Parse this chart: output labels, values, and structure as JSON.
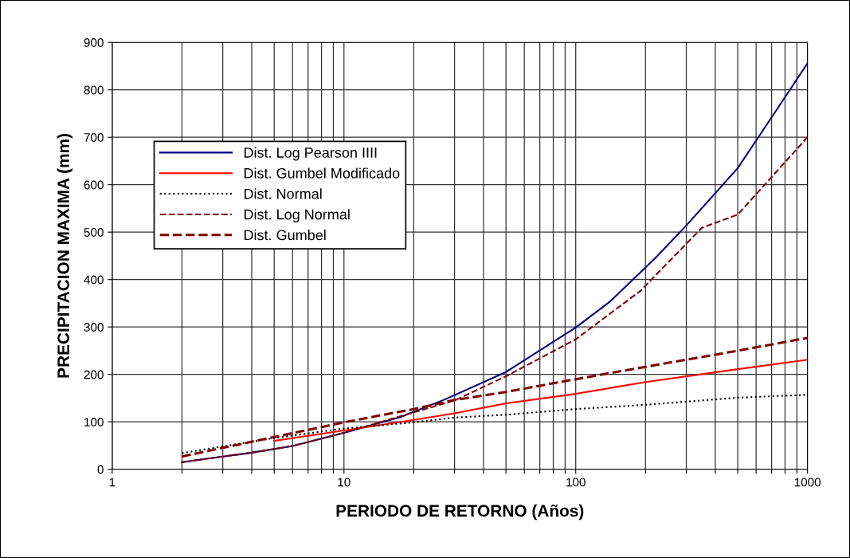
{
  "chart_data": {
    "type": "line",
    "xlabel": "PERIODO DE RETORNO (Años)",
    "ylabel": "PRECIPITACION MAXIMA (mm)",
    "log": "x",
    "grid": true,
    "legend": "top left",
    "xlim": [
      1,
      1000
    ],
    "xticks": [
      1,
      {
        "value": 2,
        "label": null
      },
      {
        "value": 3,
        "label": null
      },
      {
        "value": 4,
        "label": null
      },
      {
        "value": 5,
        "label": null
      },
      {
        "value": 6,
        "label": null
      },
      {
        "value": 7,
        "label": null
      },
      {
        "value": 8,
        "label": null
      },
      {
        "value": 9,
        "label": null
      },
      10,
      {
        "value": 20,
        "label": null
      },
      {
        "value": 30,
        "label": null
      },
      {
        "value": 40,
        "label": null
      },
      {
        "value": 50,
        "label": null
      },
      {
        "value": 60,
        "label": null
      },
      {
        "value": 70,
        "label": null
      },
      {
        "value": 80,
        "label": null
      },
      {
        "value": 90,
        "label": null
      },
      100,
      {
        "value": 200,
        "label": null
      },
      {
        "value": 300,
        "label": null
      },
      {
        "value": 400,
        "label": null
      },
      {
        "value": 500,
        "label": null
      },
      {
        "value": 600,
        "label": null
      },
      {
        "value": 700,
        "label": null
      },
      {
        "value": 800,
        "label": null
      },
      {
        "value": 900,
        "label": null
      },
      1000
    ],
    "ylim": [
      0,
      900
    ],
    "yticks": [
      0,
      100,
      200,
      300,
      400,
      500,
      600,
      700,
      800,
      900
    ],
    "series": [
      {
        "name": "Dist. Log Pearson IIII",
        "color": "#000080",
        "line_style": "solid",
        "x": [
          2,
          4,
          6,
          10,
          17.5,
          27.5,
          50,
          100,
          140,
          220,
          300,
          500,
          700,
          1000
        ],
        "values": [
          15,
          35,
          49,
          77,
          110,
          148,
          205,
          299,
          353,
          445,
          514,
          635,
          742,
          856
        ]
      },
      {
        "name": "Dist. Gumbel Modificado",
        "color": "#ff0000",
        "line_style": "solid",
        "x": [
          5,
          10,
          20,
          30,
          50,
          100,
          200,
          500,
          1000
        ],
        "values": [
          60,
          82,
          104,
          118,
          139,
          159,
          184,
          211,
          231
        ]
      },
      {
        "name": "Dist. Normal",
        "color": "#000000",
        "line_style": "dotted",
        "x": [
          2,
          5,
          10,
          20,
          30,
          50,
          100,
          200,
          500,
          1000
        ],
        "values": [
          34,
          66,
          86,
          99,
          109,
          115,
          127,
          136,
          151,
          157
        ]
      },
      {
        "name": "Dist. Log Normal",
        "color": "#800000",
        "line_style": "dashed",
        "x": [
          2,
          4,
          6,
          10,
          20,
          30,
          50,
          100,
          190,
          350,
          500,
          1000
        ],
        "values": [
          15,
          35,
          49,
          77,
          120,
          145,
          196,
          274,
          376,
          509,
          537,
          700
        ]
      },
      {
        "name": "Dist. Gumbel",
        "color": "#800000",
        "line_style": "dashed",
        "x": [
          2,
          5,
          10,
          20,
          30,
          50,
          100,
          200,
          500,
          1000
        ],
        "values": [
          27,
          68,
          99,
          127,
          146,
          163,
          190,
          216,
          250,
          277
        ]
      }
    ]
  }
}
